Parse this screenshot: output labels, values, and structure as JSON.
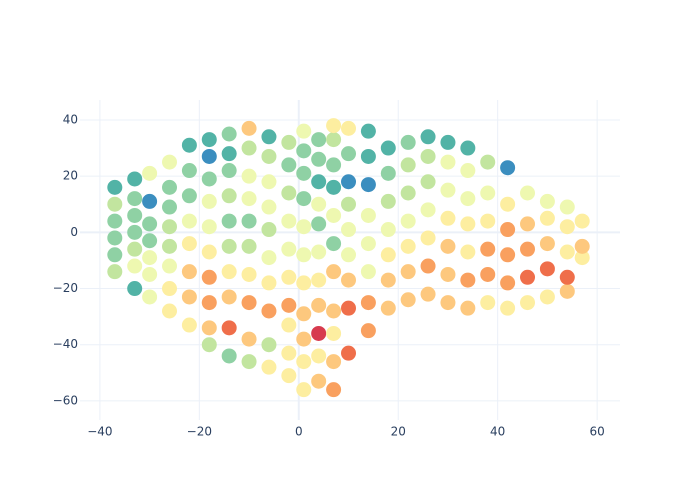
{
  "chart_data": {
    "type": "scatter",
    "xlim": [
      -44,
      64.6
    ],
    "ylim": [
      -66.8,
      47.1
    ],
    "xticks": [
      {
        "value": -40,
        "label": "−40"
      },
      {
        "value": -20,
        "label": "−20"
      },
      0,
      20,
      40,
      60
    ],
    "yticks": [
      {
        "value": -60,
        "label": "−60"
      },
      {
        "value": -40,
        "label": "−40"
      },
      {
        "value": -20,
        "label": "−20"
      },
      0,
      20,
      40
    ],
    "grid": true,
    "x": [
      -37,
      -37,
      -37,
      -37,
      -37,
      -37,
      -33,
      -33,
      -33,
      -33,
      -33,
      -33,
      -33,
      -30,
      -30,
      -30,
      -30,
      -30,
      -30,
      -30,
      -26,
      -26,
      -26,
      -26,
      -26,
      -26,
      -26,
      -26,
      -22,
      -22,
      -22,
      -22,
      -22,
      -22,
      -22,
      -22,
      -18,
      -18,
      -18,
      -18,
      -18,
      -18,
      -18,
      -18,
      -18,
      -18,
      -14,
      -14,
      -14,
      -14,
      -14,
      -14,
      -14,
      -14,
      -14,
      -14,
      -10,
      -10,
      -10,
      -10,
      -10,
      -10,
      -10,
      -10,
      -10,
      -10,
      -6,
      -6,
      -6,
      -6,
      -6,
      -6,
      -6,
      -6,
      -6,
      -6,
      -2,
      -2,
      -2,
      -2,
      -2,
      -2,
      -2,
      -2,
      -2,
      -2,
      1,
      1,
      1,
      1,
      1,
      1,
      1,
      1,
      1,
      1,
      1,
      4,
      4,
      4,
      4,
      4,
      4,
      4,
      4,
      4,
      4,
      4,
      7,
      7,
      7,
      7,
      7,
      7,
      7,
      7,
      7,
      7,
      7,
      10,
      10,
      10,
      10,
      10,
      10,
      10,
      10,
      10,
      14,
      14,
      14,
      14,
      14,
      14,
      14,
      14,
      18,
      18,
      18,
      18,
      18,
      18,
      18,
      22,
      22,
      22,
      22,
      22,
      22,
      22,
      26,
      26,
      26,
      26,
      26,
      26,
      26,
      30,
      30,
      30,
      30,
      30,
      30,
      30,
      34,
      34,
      34,
      34,
      34,
      34,
      34,
      38,
      38,
      38,
      38,
      38,
      38,
      42,
      42,
      42,
      42,
      42,
      42,
      46,
      46,
      46,
      46,
      46,
      50,
      50,
      50,
      50,
      50,
      54,
      54,
      54,
      54,
      54,
      57,
      57,
      57
    ],
    "values": [
      -14,
      -8,
      -2,
      4,
      10,
      16,
      -20,
      -12,
      -6,
      0,
      6,
      12,
      19,
      -23,
      -15,
      -9,
      -3,
      3,
      11,
      21,
      -28,
      -20,
      -12,
      -5,
      2,
      9,
      16,
      25,
      -33,
      -23,
      -14,
      -4,
      4,
      13,
      22,
      31,
      -40,
      -34,
      -25,
      -16,
      -7,
      2,
      11,
      19,
      27,
      33,
      -44,
      -34,
      -23,
      -14,
      -5,
      4,
      13,
      22,
      28,
      35,
      -46,
      -38,
      -25,
      -15,
      -5,
      4,
      12,
      20,
      30,
      37,
      -48,
      -40,
      -28,
      -18,
      -9,
      1,
      9,
      18,
      27,
      34,
      -51,
      -43,
      -33,
      -26,
      -16,
      -6,
      4,
      14,
      24,
      32,
      -56,
      -46,
      -38,
      -29,
      -18,
      -8,
      2,
      12,
      21,
      29,
      36,
      -53,
      -44,
      -36,
      -26,
      -17,
      -7,
      3,
      10,
      18,
      26,
      33,
      -56,
      -46,
      -36,
      -28,
      -14,
      -4,
      6,
      16,
      24,
      33,
      38,
      -43,
      -27,
      -17,
      -8,
      1,
      10,
      18,
      28,
      37,
      -35,
      -25,
      -14,
      -4,
      6,
      17,
      27,
      36,
      -27,
      -17,
      -8,
      1,
      11,
      21,
      30,
      -24,
      -14,
      -5,
      4,
      14,
      24,
      32,
      -22,
      -12,
      -2,
      8,
      18,
      27,
      34,
      -25,
      -15,
      -5,
      5,
      15,
      25,
      32,
      -27,
      -17,
      -7,
      3,
      12,
      22,
      30,
      -25,
      -15,
      -6,
      4,
      14,
      25,
      -27,
      -18,
      -8,
      1,
      10,
      23,
      -25,
      -16,
      -6,
      3,
      14,
      -23,
      -13,
      -4,
      5,
      11,
      -21,
      -16,
      -7,
      2,
      9,
      -9,
      -5,
      4
    ],
    "colors": [
      "#c2e59f",
      "#8fd1a4",
      "#8fd1a4",
      "#8fd1a4",
      "#c2e59f",
      "#52b3a6",
      "#52b3a6",
      "#eef8b0",
      "#c2e59f",
      "#8fd1a4",
      "#8fd1a4",
      "#8fd1a4",
      "#52b3a6",
      "#eef8b0",
      "#eef8b0",
      "#eef8b0",
      "#8fd1a4",
      "#8fd1a4",
      "#3b8ebf",
      "#eef8b0",
      "#fdeea0",
      "#fdeea0",
      "#eef8b0",
      "#c2e59f",
      "#c2e59f",
      "#8fd1a4",
      "#8fd1a4",
      "#eef8b0",
      "#fdeea0",
      "#fdc87e",
      "#fdc87e",
      "#fdeea0",
      "#eef8b0",
      "#8fd1a4",
      "#8fd1a4",
      "#52b3a6",
      "#c2e59f",
      "#fdc87e",
      "#f9a05f",
      "#f9a05f",
      "#fdeea0",
      "#eef8b0",
      "#eef8b0",
      "#8fd1a4",
      "#3b8ebf",
      "#52b3a6",
      "#8fd1a4",
      "#ef6e4a",
      "#fdc87e",
      "#fdeea0",
      "#c2e59f",
      "#8fd1a4",
      "#c2e59f",
      "#8fd1a4",
      "#52b3a6",
      "#8fd1a4",
      "#c2e59f",
      "#fdc87e",
      "#f9a05f",
      "#fdeea0",
      "#c2e59f",
      "#8fd1a4",
      "#eef8b0",
      "#eef8b0",
      "#c2e59f",
      "#fdc87e",
      "#fdeea0",
      "#c2e59f",
      "#f9a05f",
      "#fdeea0",
      "#eef8b0",
      "#c2e59f",
      "#eef8b0",
      "#eef8b0",
      "#c2e59f",
      "#52b3a6",
      "#fdeea0",
      "#fdeea0",
      "#fdeea0",
      "#f9a05f",
      "#fdeea0",
      "#eef8b0",
      "#eef8b0",
      "#c2e59f",
      "#8fd1a4",
      "#c2e59f",
      "#fdeea0",
      "#fdeea0",
      "#fdc87e",
      "#fdc87e",
      "#fdeea0",
      "#eef8b0",
      "#eef8b0",
      "#8fd1a4",
      "#8fd1a4",
      "#8fd1a4",
      "#eef8b0",
      "#fdc87e",
      "#fdeea0",
      "#d73b4e",
      "#fdc87e",
      "#fdeea0",
      "#eef8b0",
      "#8fd1a4",
      "#eef8b0",
      "#52b3a6",
      "#8fd1a4",
      "#8fd1a4",
      "#f9a05f",
      "#fdc87e",
      "#fdeea0",
      "#fdc87e",
      "#fdc87e",
      "#8fd1a4",
      "#eef8b0",
      "#52b3a6",
      "#8fd1a4",
      "#c2e59f",
      "#fdeea0",
      "#ef6e4a",
      "#ef6e4a",
      "#fdc87e",
      "#eef8b0",
      "#eef8b0",
      "#c2e59f",
      "#3b8ebf",
      "#8fd1a4",
      "#fdeea0",
      "#f9a05f",
      "#f9a05f",
      "#eef8b0",
      "#eef8b0",
      "#eef8b0",
      "#3b8ebf",
      "#52b3a6",
      "#52b3a6",
      "#fdc87e",
      "#fdc87e",
      "#fdeea0",
      "#eef8b0",
      "#c2e59f",
      "#8fd1a4",
      "#52b3a6",
      "#fdc87e",
      "#fdc87e",
      "#fdeea0",
      "#eef8b0",
      "#c2e59f",
      "#c2e59f",
      "#8fd1a4",
      "#fdc87e",
      "#f9a05f",
      "#fdeea0",
      "#eef8b0",
      "#c2e59f",
      "#c2e59f",
      "#52b3a6",
      "#fdc87e",
      "#fdc87e",
      "#fdc87e",
      "#fdeea0",
      "#eef8b0",
      "#eef8b0",
      "#52b3a6",
      "#fdc87e",
      "#f9a05f",
      "#fdeea0",
      "#fdeea0",
      "#eef8b0",
      "#eef8b0",
      "#52b3a6",
      "#fdeea0",
      "#f9a05f",
      "#f9a05f",
      "#fdeea0",
      "#eef8b0",
      "#c2e59f",
      "#fdeea0",
      "#f9a05f",
      "#f9a05f",
      "#f9a05f",
      "#fdeea0",
      "#3b8ebf",
      "#fdeea0",
      "#ef6e4a",
      "#f9a05f",
      "#fdc87e",
      "#eef8b0",
      "#fdeea0",
      "#ef6e4a",
      "#fdc87e",
      "#fdeea0",
      "#eef8b0",
      "#fdc87e",
      "#ef6e4a",
      "#fdeea0",
      "#fdeea0",
      "#eef8b0",
      "#fdeea0",
      "#fdc87e",
      "#fdeea0"
    ]
  }
}
